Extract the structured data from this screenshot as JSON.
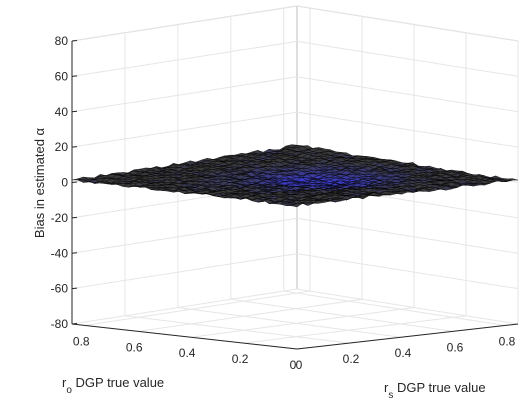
{
  "chart_data": {
    "type": "surface3d",
    "title": "",
    "zlabel": "Bias in estimated α",
    "xlabel": {
      "prefix": "r",
      "sub": "s",
      "suffix": " DGP true value"
    },
    "ylabel": {
      "prefix": "r",
      "sub": "o",
      "suffix": " DGP true value"
    },
    "x_range": [
      0,
      0.85
    ],
    "y_range": [
      0,
      0.85
    ],
    "zlim": [
      -80,
      80
    ],
    "x_ticks": [
      "0",
      "0.2",
      "0.4",
      "0.6",
      "0.8"
    ],
    "y_ticks": [
      "0",
      "0.2",
      "0.4",
      "0.6",
      "0.8"
    ],
    "z_ticks": [
      "80",
      "60",
      "40",
      "20",
      "0",
      "-20",
      "-40",
      "-60",
      "-80"
    ],
    "grid": true,
    "surface": {
      "description": "near-flat surface of bias values around zero",
      "z_min": -3,
      "z_max": 3,
      "colors": {
        "high": "#3a3a3a",
        "low": "#3c3cff",
        "mesh": "#000000"
      }
    }
  }
}
